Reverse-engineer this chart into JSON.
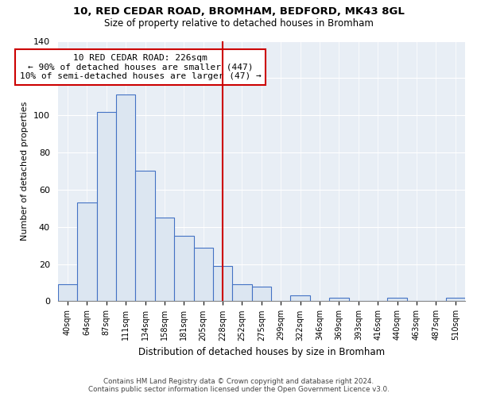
{
  "title1": "10, RED CEDAR ROAD, BROMHAM, BEDFORD, MK43 8GL",
  "title2": "Size of property relative to detached houses in Bromham",
  "xlabel": "Distribution of detached houses by size in Bromham",
  "ylabel": "Number of detached properties",
  "bar_labels": [
    "40sqm",
    "64sqm",
    "87sqm",
    "111sqm",
    "134sqm",
    "158sqm",
    "181sqm",
    "205sqm",
    "228sqm",
    "252sqm",
    "275sqm",
    "299sqm",
    "322sqm",
    "346sqm",
    "369sqm",
    "393sqm",
    "416sqm",
    "440sqm",
    "463sqm",
    "487sqm",
    "510sqm"
  ],
  "bar_values": [
    9,
    53,
    102,
    111,
    70,
    45,
    35,
    29,
    19,
    9,
    8,
    0,
    3,
    0,
    2,
    0,
    0,
    2,
    0,
    0,
    2
  ],
  "bar_color": "#dce6f1",
  "bar_edge_color": "#4472c4",
  "vline_x": 8,
  "vline_color": "#cc0000",
  "annotation_title": "10 RED CEDAR ROAD: 226sqm",
  "annotation_line1": "← 90% of detached houses are smaller (447)",
  "annotation_line2": "10% of semi-detached houses are larger (47) →",
  "annotation_box_color": "#ffffff",
  "annotation_box_edge": "#cc0000",
  "plot_bg_color": "#e8eef5",
  "ylim": [
    0,
    140
  ],
  "yticks": [
    0,
    20,
    40,
    60,
    80,
    100,
    120,
    140
  ],
  "footnote1": "Contains HM Land Registry data © Crown copyright and database right 2024.",
  "footnote2": "Contains public sector information licensed under the Open Government Licence v3.0."
}
